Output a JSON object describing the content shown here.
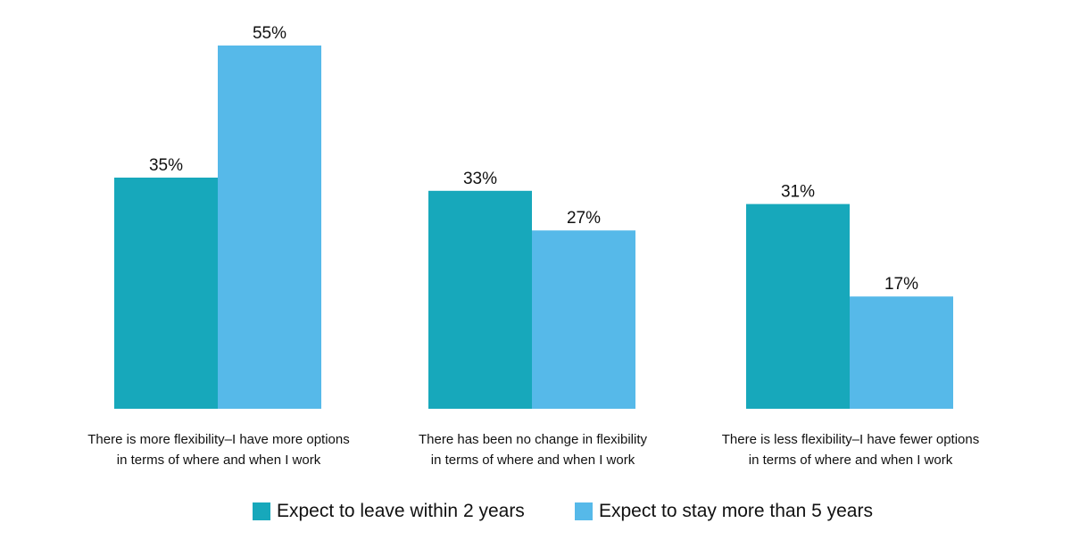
{
  "chart_data": {
    "type": "bar",
    "categories": [
      [
        "There is more flexibility–I have more options",
        "in terms of where and when I work"
      ],
      [
        "There has been no change in flexibility",
        "in terms of where and when I work"
      ],
      [
        "There is less flexibility–I have fewer options",
        "in terms of where and when I work"
      ]
    ],
    "series": [
      {
        "name": "Expect to leave within 2 years",
        "values": [
          35,
          33,
          31
        ],
        "labels": [
          "35%",
          "33%",
          "31%"
        ],
        "color": "#17a8bb"
      },
      {
        "name": "Expect to stay more than 5 years",
        "values": [
          55,
          27,
          17
        ],
        "labels": [
          "55%",
          "27%",
          "17%"
        ],
        "color": "#56b9e9"
      }
    ],
    "ylim": [
      0,
      60
    ],
    "grid": false,
    "legend_position": "bottom"
  }
}
